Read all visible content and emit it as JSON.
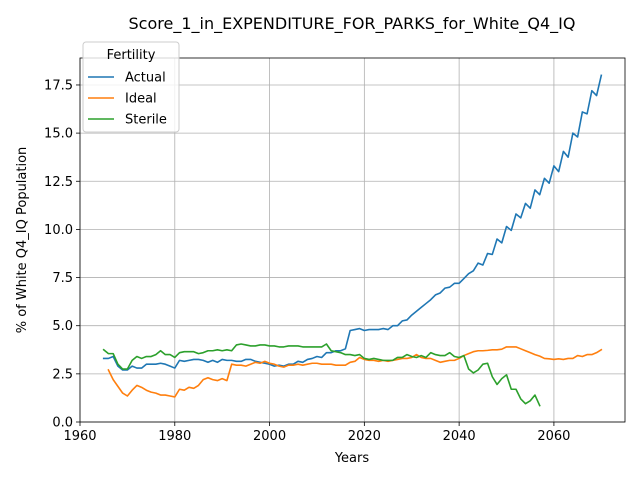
{
  "chart_data": {
    "type": "line",
    "title": "Score_1_in_EXPENDITURE_FOR_PARKS_for_White_Q4_IQ",
    "xlabel": "Years",
    "ylabel": "% of White Q4_IQ Population",
    "xlim": [
      1960,
      2075
    ],
    "ylim": [
      0,
      18.9
    ],
    "xticks": [
      1960,
      1980,
      2000,
      2020,
      2040,
      2060
    ],
    "yticks": [
      0.0,
      2.5,
      5.0,
      7.5,
      10.0,
      12.5,
      15.0,
      17.5
    ],
    "ytick_labels": [
      "0.0",
      "2.5",
      "5.0",
      "7.5",
      "10.0",
      "12.5",
      "15.0",
      "17.5"
    ],
    "grid": true,
    "legend": {
      "title": "Fertility",
      "position": "top-left"
    },
    "series": [
      {
        "name": "Actual",
        "color": "#1f77b4",
        "points": [
          [
            1965,
            3.3
          ],
          [
            1966,
            3.3
          ],
          [
            1967,
            3.4
          ],
          [
            1968,
            2.9
          ],
          [
            1969,
            2.7
          ],
          [
            1970,
            2.7
          ],
          [
            1971,
            2.9
          ],
          [
            1972,
            2.8
          ],
          [
            1973,
            2.8
          ],
          [
            1974,
            3.0
          ],
          [
            1975,
            3.0
          ],
          [
            1976,
            3.0
          ],
          [
            1977,
            3.05
          ],
          [
            1978,
            3.0
          ],
          [
            1979,
            2.9
          ],
          [
            1980,
            2.8
          ],
          [
            1981,
            3.2
          ],
          [
            1982,
            3.15
          ],
          [
            1983,
            3.2
          ],
          [
            1984,
            3.25
          ],
          [
            1985,
            3.25
          ],
          [
            1986,
            3.2
          ],
          [
            1987,
            3.1
          ],
          [
            1988,
            3.2
          ],
          [
            1989,
            3.1
          ],
          [
            1990,
            3.25
          ],
          [
            1991,
            3.2
          ],
          [
            1992,
            3.2
          ],
          [
            1993,
            3.15
          ],
          [
            1994,
            3.15
          ],
          [
            1995,
            3.25
          ],
          [
            1996,
            3.25
          ],
          [
            1997,
            3.15
          ],
          [
            1998,
            3.1
          ],
          [
            1999,
            3.05
          ],
          [
            2000,
            3.0
          ],
          [
            2001,
            2.9
          ],
          [
            2002,
            2.95
          ],
          [
            2003,
            2.9
          ],
          [
            2004,
            3.0
          ],
          [
            2005,
            3.0
          ],
          [
            2006,
            3.15
          ],
          [
            2007,
            3.1
          ],
          [
            2008,
            3.25
          ],
          [
            2009,
            3.3
          ],
          [
            2010,
            3.4
          ],
          [
            2011,
            3.35
          ],
          [
            2012,
            3.6
          ],
          [
            2013,
            3.6
          ],
          [
            2014,
            3.7
          ],
          [
            2015,
            3.7
          ],
          [
            2016,
            3.8
          ],
          [
            2017,
            4.75
          ],
          [
            2018,
            4.8
          ],
          [
            2019,
            4.85
          ],
          [
            2020,
            4.75
          ],
          [
            2021,
            4.8
          ],
          [
            2022,
            4.8
          ],
          [
            2023,
            4.8
          ],
          [
            2024,
            4.85
          ],
          [
            2025,
            4.8
          ],
          [
            2026,
            5.0
          ],
          [
            2027,
            5.0
          ],
          [
            2028,
            5.25
          ],
          [
            2029,
            5.3
          ],
          [
            2030,
            5.55
          ],
          [
            2031,
            5.75
          ],
          [
            2032,
            5.95
          ],
          [
            2033,
            6.15
          ],
          [
            2034,
            6.35
          ],
          [
            2035,
            6.6
          ],
          [
            2036,
            6.7
          ],
          [
            2037,
            6.95
          ],
          [
            2038,
            7.0
          ],
          [
            2039,
            7.2
          ],
          [
            2040,
            7.2
          ],
          [
            2041,
            7.45
          ],
          [
            2042,
            7.7
          ],
          [
            2043,
            7.85
          ],
          [
            2044,
            8.25
          ],
          [
            2045,
            8.15
          ],
          [
            2046,
            8.75
          ],
          [
            2047,
            8.7
          ],
          [
            2048,
            9.5
          ],
          [
            2049,
            9.3
          ],
          [
            2050,
            10.15
          ],
          [
            2051,
            9.95
          ],
          [
            2052,
            10.8
          ],
          [
            2053,
            10.6
          ],
          [
            2054,
            11.35
          ],
          [
            2055,
            11.1
          ],
          [
            2056,
            12.05
          ],
          [
            2057,
            11.8
          ],
          [
            2058,
            12.65
          ],
          [
            2059,
            12.4
          ],
          [
            2060,
            13.3
          ],
          [
            2061,
            13.0
          ],
          [
            2062,
            14.05
          ],
          [
            2063,
            13.75
          ],
          [
            2064,
            15.0
          ],
          [
            2065,
            14.8
          ],
          [
            2066,
            16.1
          ],
          [
            2067,
            16.0
          ],
          [
            2068,
            17.2
          ],
          [
            2069,
            16.95
          ],
          [
            2070,
            18.0
          ]
        ]
      },
      {
        "name": "Ideal",
        "color": "#ff7f0e",
        "points": [
          [
            1966,
            2.7
          ],
          [
            1967,
            2.2
          ],
          [
            1968,
            1.85
          ],
          [
            1969,
            1.5
          ],
          [
            1970,
            1.35
          ],
          [
            1971,
            1.65
          ],
          [
            1972,
            1.9
          ],
          [
            1973,
            1.8
          ],
          [
            1974,
            1.65
          ],
          [
            1975,
            1.55
          ],
          [
            1976,
            1.5
          ],
          [
            1977,
            1.4
          ],
          [
            1978,
            1.4
          ],
          [
            1979,
            1.35
          ],
          [
            1980,
            1.3
          ],
          [
            1981,
            1.7
          ],
          [
            1982,
            1.65
          ],
          [
            1983,
            1.8
          ],
          [
            1984,
            1.75
          ],
          [
            1985,
            1.9
          ],
          [
            1986,
            2.2
          ],
          [
            1987,
            2.3
          ],
          [
            1988,
            2.2
          ],
          [
            1989,
            2.15
          ],
          [
            1990,
            2.25
          ],
          [
            1991,
            2.15
          ],
          [
            1992,
            3.0
          ],
          [
            1993,
            2.95
          ],
          [
            1994,
            2.95
          ],
          [
            1995,
            2.9
          ],
          [
            1996,
            3.0
          ],
          [
            1997,
            3.1
          ],
          [
            1998,
            3.05
          ],
          [
            1999,
            3.15
          ],
          [
            2000,
            3.05
          ],
          [
            2001,
            3.0
          ],
          [
            2002,
            2.9
          ],
          [
            2003,
            2.85
          ],
          [
            2004,
            2.95
          ],
          [
            2005,
            2.95
          ],
          [
            2006,
            3.0
          ],
          [
            2007,
            2.95
          ],
          [
            2008,
            3.0
          ],
          [
            2009,
            3.05
          ],
          [
            2010,
            3.05
          ],
          [
            2011,
            3.0
          ],
          [
            2012,
            3.0
          ],
          [
            2013,
            3.0
          ],
          [
            2014,
            2.95
          ],
          [
            2015,
            2.95
          ],
          [
            2016,
            2.95
          ],
          [
            2017,
            3.1
          ],
          [
            2018,
            3.15
          ],
          [
            2019,
            3.35
          ],
          [
            2020,
            3.25
          ],
          [
            2021,
            3.2
          ],
          [
            2022,
            3.2
          ],
          [
            2023,
            3.15
          ],
          [
            2024,
            3.2
          ],
          [
            2025,
            3.15
          ],
          [
            2026,
            3.2
          ],
          [
            2027,
            3.25
          ],
          [
            2028,
            3.3
          ],
          [
            2029,
            3.3
          ],
          [
            2030,
            3.35
          ],
          [
            2031,
            3.5
          ],
          [
            2032,
            3.35
          ],
          [
            2033,
            3.3
          ],
          [
            2034,
            3.3
          ],
          [
            2035,
            3.2
          ],
          [
            2036,
            3.1
          ],
          [
            2037,
            3.15
          ],
          [
            2038,
            3.2
          ],
          [
            2039,
            3.2
          ],
          [
            2040,
            3.3
          ],
          [
            2041,
            3.45
          ],
          [
            2042,
            3.55
          ],
          [
            2043,
            3.65
          ],
          [
            2044,
            3.7
          ],
          [
            2045,
            3.7
          ],
          [
            2046,
            3.72
          ],
          [
            2047,
            3.75
          ],
          [
            2048,
            3.75
          ],
          [
            2049,
            3.78
          ],
          [
            2050,
            3.9
          ],
          [
            2051,
            3.9
          ],
          [
            2052,
            3.9
          ],
          [
            2053,
            3.8
          ],
          [
            2054,
            3.7
          ],
          [
            2055,
            3.6
          ],
          [
            2056,
            3.5
          ],
          [
            2057,
            3.42
          ],
          [
            2058,
            3.3
          ],
          [
            2059,
            3.28
          ],
          [
            2060,
            3.25
          ],
          [
            2061,
            3.28
          ],
          [
            2062,
            3.25
          ],
          [
            2063,
            3.3
          ],
          [
            2064,
            3.3
          ],
          [
            2065,
            3.45
          ],
          [
            2066,
            3.4
          ],
          [
            2067,
            3.5
          ],
          [
            2068,
            3.5
          ],
          [
            2069,
            3.6
          ],
          [
            2070,
            3.75
          ]
        ]
      },
      {
        "name": "Sterile",
        "color": "#2ca02c",
        "points": [
          [
            1965,
            3.75
          ],
          [
            1966,
            3.55
          ],
          [
            1967,
            3.55
          ],
          [
            1968,
            3.0
          ],
          [
            1969,
            2.75
          ],
          [
            1970,
            2.75
          ],
          [
            1971,
            3.2
          ],
          [
            1972,
            3.4
          ],
          [
            1973,
            3.3
          ],
          [
            1974,
            3.4
          ],
          [
            1975,
            3.4
          ],
          [
            1976,
            3.5
          ],
          [
            1977,
            3.7
          ],
          [
            1978,
            3.5
          ],
          [
            1979,
            3.5
          ],
          [
            1980,
            3.35
          ],
          [
            1981,
            3.6
          ],
          [
            1982,
            3.65
          ],
          [
            1983,
            3.65
          ],
          [
            1984,
            3.65
          ],
          [
            1985,
            3.55
          ],
          [
            1986,
            3.6
          ],
          [
            1987,
            3.7
          ],
          [
            1988,
            3.7
          ],
          [
            1989,
            3.75
          ],
          [
            1990,
            3.7
          ],
          [
            1991,
            3.75
          ],
          [
            1992,
            3.7
          ],
          [
            1993,
            4.0
          ],
          [
            1994,
            4.05
          ],
          [
            1995,
            4.0
          ],
          [
            1996,
            3.95
          ],
          [
            1997,
            3.95
          ],
          [
            1998,
            4.0
          ],
          [
            1999,
            4.0
          ],
          [
            2000,
            3.95
          ],
          [
            2001,
            3.95
          ],
          [
            2002,
            3.9
          ],
          [
            2003,
            3.9
          ],
          [
            2004,
            3.95
          ],
          [
            2005,
            3.95
          ],
          [
            2006,
            3.95
          ],
          [
            2007,
            3.9
          ],
          [
            2008,
            3.9
          ],
          [
            2009,
            3.9
          ],
          [
            2010,
            3.9
          ],
          [
            2011,
            3.9
          ],
          [
            2012,
            4.05
          ],
          [
            2013,
            3.7
          ],
          [
            2014,
            3.65
          ],
          [
            2015,
            3.6
          ],
          [
            2016,
            3.5
          ],
          [
            2017,
            3.5
          ],
          [
            2018,
            3.45
          ],
          [
            2019,
            3.5
          ],
          [
            2020,
            3.3
          ],
          [
            2021,
            3.25
          ],
          [
            2022,
            3.3
          ],
          [
            2023,
            3.25
          ],
          [
            2024,
            3.2
          ],
          [
            2025,
            3.2
          ],
          [
            2026,
            3.2
          ],
          [
            2027,
            3.35
          ],
          [
            2028,
            3.35
          ],
          [
            2029,
            3.5
          ],
          [
            2030,
            3.4
          ],
          [
            2031,
            3.35
          ],
          [
            2032,
            3.45
          ],
          [
            2033,
            3.35
          ],
          [
            2034,
            3.6
          ],
          [
            2035,
            3.5
          ],
          [
            2036,
            3.45
          ],
          [
            2037,
            3.45
          ],
          [
            2038,
            3.6
          ],
          [
            2039,
            3.4
          ],
          [
            2040,
            3.35
          ],
          [
            2041,
            3.45
          ],
          [
            2042,
            2.75
          ],
          [
            2043,
            2.55
          ],
          [
            2044,
            2.7
          ],
          [
            2045,
            3.0
          ],
          [
            2046,
            3.05
          ],
          [
            2047,
            2.35
          ],
          [
            2048,
            1.95
          ],
          [
            2049,
            2.25
          ],
          [
            2050,
            2.45
          ],
          [
            2051,
            1.7
          ],
          [
            2052,
            1.7
          ],
          [
            2053,
            1.2
          ],
          [
            2054,
            0.95
          ],
          [
            2055,
            1.1
          ],
          [
            2056,
            1.4
          ],
          [
            2057,
            0.85
          ]
        ]
      }
    ]
  }
}
